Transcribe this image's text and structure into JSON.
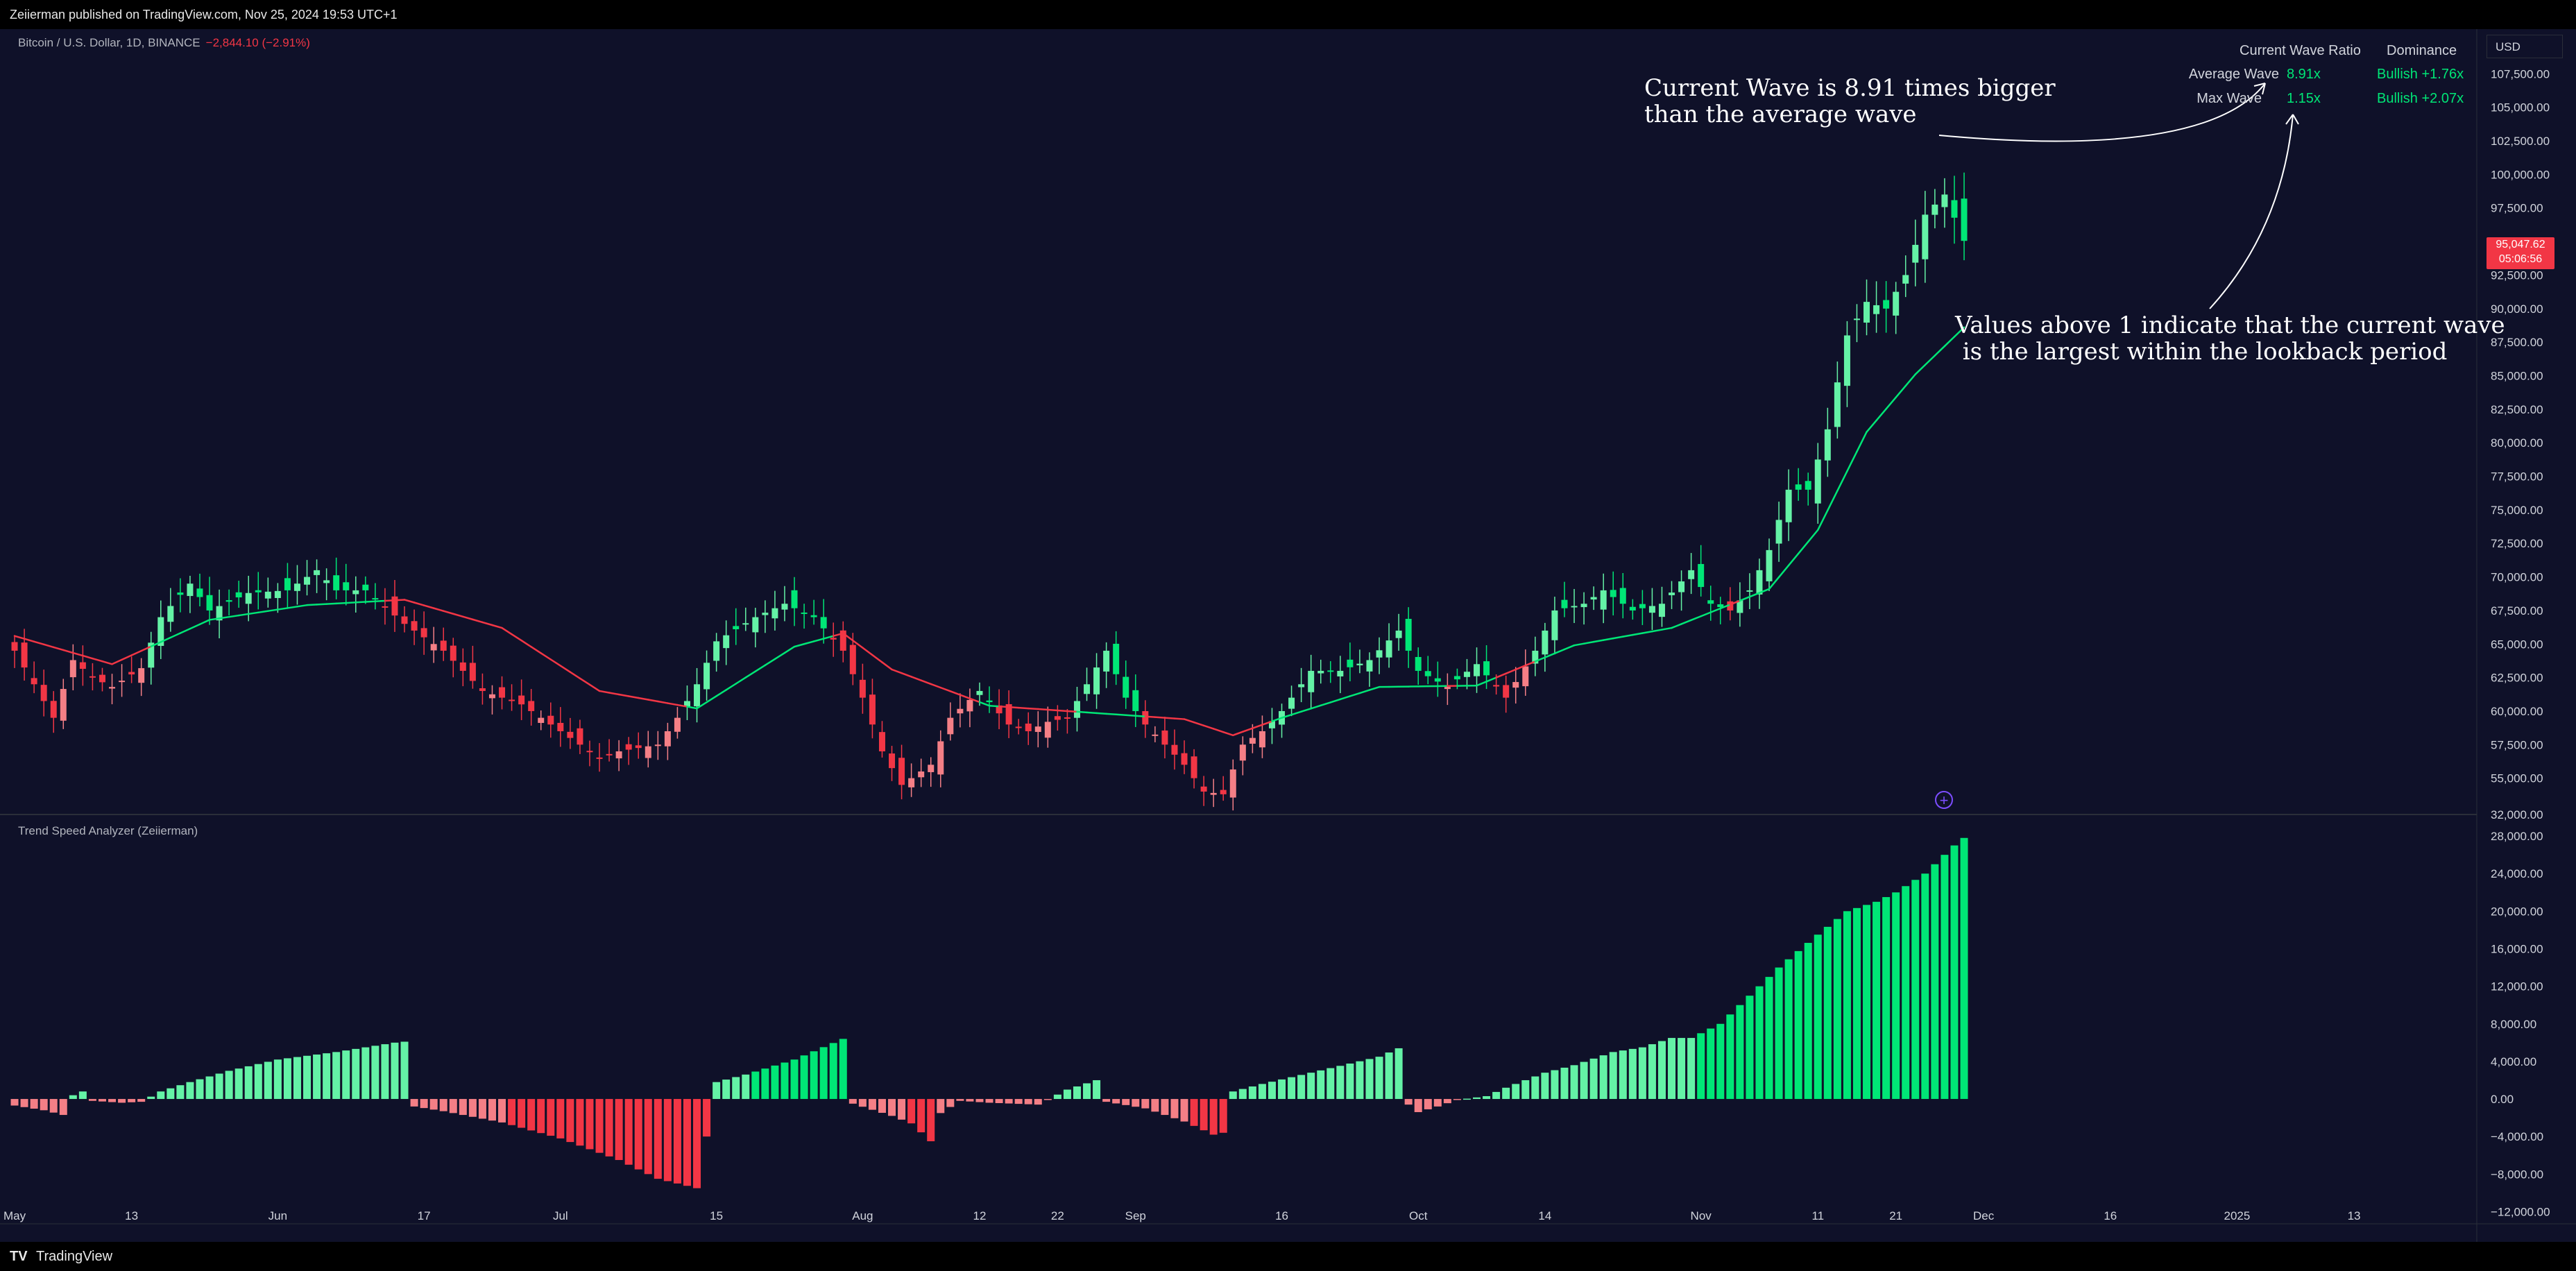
{
  "header": {
    "published": "Zeiierman published on TradingView.com, Nov 25, 2024 19:53 UTC+1"
  },
  "footer": {
    "brand": "TradingView",
    "logo": "TV"
  },
  "symbol": {
    "title": "Bitcoin / U.S. Dollar, 1D, BINANCE",
    "change": "−2,844.10 (−2.91%)"
  },
  "indicator": {
    "title": "Trend Speed Analyzer (Zeiierman)"
  },
  "currency": "USD",
  "last_price": {
    "price": "95,047.62",
    "countdown": "05:06:56",
    "color": "#f23645"
  },
  "annotations": {
    "current_wave": "Current Wave is 8.91 times bigger\nthan the average wave",
    "values_above": "Values above 1 indicate that the current wave\n is the largest within the lookback period"
  },
  "table": {
    "headers": [
      "Current Wave Ratio",
      "Dominance"
    ],
    "rows": [
      {
        "label": "Average Wave",
        "ratio": "8.91x",
        "dominance": "Bullish +1.76x"
      },
      {
        "label": "Max Wave",
        "ratio": "1.15x",
        "dominance": "Bullish +2.07x"
      }
    ]
  },
  "colors": {
    "background": "#0f1129",
    "bull": "#00e676",
    "bear": "#f23645",
    "bull_light": "#64f2a6",
    "bear_light": "#f47f86",
    "text": "#d1d4dc"
  },
  "chart_data": [
    {
      "type": "candlestick",
      "ylim": [
        52500,
        110000
      ],
      "y_ticks": [
        "55,000.00",
        "57,500.00",
        "60,000.00",
        "62,500.00",
        "65,000.00",
        "67,500.00",
        "70,000.00",
        "72,500.00",
        "75,000.00",
        "77,500.00",
        "80,000.00",
        "82,500.00",
        "85,000.00",
        "87,500.00",
        "90,000.00",
        "92,500.00",
        "95,000.00",
        "97,500.00",
        "100,000.00",
        "102,500.00",
        "105,000.00",
        "107,500.00"
      ],
      "y_tick_values": [
        55000,
        57500,
        60000,
        62500,
        65000,
        67500,
        70000,
        72500,
        75000,
        77500,
        80000,
        82500,
        85000,
        87500,
        90000,
        92500,
        95000,
        97500,
        100000,
        102500,
        105000,
        107500
      ],
      "x_ticks": [
        "May",
        "13",
        "Jun",
        "17",
        "Jul",
        "15",
        "Aug",
        "12",
        "22",
        "Sep",
        "16",
        "Oct",
        "14",
        "Nov",
        "11",
        "21",
        "Dec",
        "16",
        "2025",
        "13"
      ],
      "x_tick_bars": [
        0,
        12,
        27,
        42,
        56,
        72,
        87,
        99,
        107,
        115,
        130,
        144,
        157,
        173,
        185,
        193,
        202,
        215,
        228,
        240
      ],
      "keypoints_close": [
        [
          0,
          64500
        ],
        [
          2,
          62000
        ],
        [
          4,
          59500
        ],
        [
          6,
          63800
        ],
        [
          8,
          62500
        ],
        [
          10,
          61800
        ],
        [
          13,
          63200
        ],
        [
          15,
          67000
        ],
        [
          18,
          69500
        ],
        [
          20,
          67500
        ],
        [
          24,
          68800
        ],
        [
          28,
          69000
        ],
        [
          31,
          70500
        ],
        [
          33,
          69000
        ],
        [
          36,
          69000
        ],
        [
          40,
          66500
        ],
        [
          44,
          64500
        ],
        [
          48,
          61500
        ],
        [
          52,
          60500
        ],
        [
          56,
          58500
        ],
        [
          60,
          56500
        ],
        [
          62,
          57000
        ],
        [
          66,
          57500
        ],
        [
          68,
          59500
        ],
        [
          70,
          62000
        ],
        [
          72,
          65200
        ],
        [
          76,
          67000
        ],
        [
          79,
          68000
        ],
        [
          82,
          67000
        ],
        [
          85,
          64500
        ],
        [
          87,
          61000
        ],
        [
          89,
          57000
        ],
        [
          91,
          54500
        ],
        [
          94,
          56000
        ],
        [
          96,
          59500
        ],
        [
          99,
          61500
        ],
        [
          102,
          59000
        ],
        [
          104,
          58500
        ],
        [
          106,
          59200
        ],
        [
          108,
          59500
        ],
        [
          110,
          62000
        ],
        [
          112,
          64500
        ],
        [
          114,
          61000
        ],
        [
          116,
          59000
        ],
        [
          118,
          57500
        ],
        [
          120,
          56000
        ],
        [
          122,
          54000
        ],
        [
          124,
          53800
        ],
        [
          126,
          57500
        ],
        [
          128,
          58500
        ],
        [
          130,
          60000
        ],
        [
          133,
          63000
        ],
        [
          136,
          63000
        ],
        [
          139,
          63800
        ],
        [
          142,
          66000
        ],
        [
          144,
          63000
        ],
        [
          147,
          61800
        ],
        [
          150,
          63500
        ],
        [
          153,
          61000
        ],
        [
          156,
          64500
        ],
        [
          158,
          67500
        ],
        [
          161,
          68000
        ],
        [
          163,
          69000
        ],
        [
          166,
          67500
        ],
        [
          169,
          68000
        ],
        [
          172,
          70500
        ],
        [
          174,
          68000
        ],
        [
          176,
          67500
        ],
        [
          178,
          69000
        ],
        [
          180,
          72000
        ],
        [
          182,
          76500
        ],
        [
          184,
          76500
        ],
        [
          186,
          81000
        ],
        [
          188,
          88000
        ],
        [
          190,
          90500
        ],
        [
          192,
          90000
        ],
        [
          194,
          92500
        ],
        [
          196,
          97000
        ],
        [
          198,
          98500
        ],
        [
          200,
          95047
        ]
      ],
      "trend_line_keypoints": [
        [
          0,
          65600
        ],
        [
          10,
          63500
        ],
        [
          20,
          66800
        ],
        [
          30,
          67900
        ],
        [
          40,
          68300
        ],
        [
          50,
          66200
        ],
        [
          60,
          61500
        ],
        [
          70,
          60200
        ],
        [
          80,
          64800
        ],
        [
          85,
          65800
        ],
        [
          90,
          63100
        ],
        [
          100,
          60400
        ],
        [
          110,
          59900
        ],
        [
          120,
          59400
        ],
        [
          125,
          58200
        ],
        [
          130,
          59500
        ],
        [
          140,
          61800
        ],
        [
          150,
          61900
        ],
        [
          160,
          64900
        ],
        [
          170,
          66200
        ],
        [
          180,
          69100
        ],
        [
          185,
          73500
        ],
        [
          190,
          80800
        ],
        [
          195,
          85100
        ],
        [
          200,
          88600
        ]
      ]
    },
    {
      "type": "bar",
      "title": "Trend Speed Analyzer (Zeiierman)",
      "ylim": [
        -13000,
        30000
      ],
      "y_ticks": [
        "−12,000.00",
        "−8,000.00",
        "−4,000.00",
        "0.00",
        "4,000.00",
        "8,000.00",
        "12,000.00",
        "16,000.00",
        "20,000.00",
        "24,000.00",
        "28,000.00",
        "32,000.00"
      ],
      "y_tick_values": [
        -12000,
        -8000,
        -4000,
        0,
        4000,
        8000,
        12000,
        16000,
        20000,
        24000,
        28000,
        32000
      ],
      "keypoints": [
        [
          0,
          -700
        ],
        [
          3,
          -1200
        ],
        [
          5,
          -1700
        ],
        [
          6,
          400
        ],
        [
          7,
          800
        ],
        [
          8,
          -200
        ],
        [
          11,
          -400
        ],
        [
          13,
          -300
        ],
        [
          15,
          800
        ],
        [
          18,
          1800
        ],
        [
          22,
          3000
        ],
        [
          27,
          4200
        ],
        [
          33,
          5000
        ],
        [
          39,
          6000
        ],
        [
          40,
          6100
        ],
        [
          41,
          -800
        ],
        [
          44,
          -1300
        ],
        [
          50,
          -2500
        ],
        [
          56,
          -4200
        ],
        [
          62,
          -6500
        ],
        [
          66,
          -8500
        ],
        [
          70,
          -9500
        ],
        [
          71,
          -4000
        ],
        [
          72,
          1800
        ],
        [
          75,
          2600
        ],
        [
          80,
          4200
        ],
        [
          85,
          6400
        ],
        [
          86,
          -500
        ],
        [
          90,
          -1800
        ],
        [
          92,
          -2600
        ],
        [
          94,
          -4500
        ],
        [
          95,
          -1500
        ],
        [
          97,
          -200
        ],
        [
          100,
          -400
        ],
        [
          105,
          -600
        ],
        [
          108,
          1000
        ],
        [
          111,
          2000
        ],
        [
          112,
          -300
        ],
        [
          116,
          -1000
        ],
        [
          120,
          -2400
        ],
        [
          123,
          -3800
        ],
        [
          124,
          -3600
        ],
        [
          125,
          800
        ],
        [
          128,
          1600
        ],
        [
          133,
          2800
        ],
        [
          140,
          4500
        ],
        [
          142,
          5400
        ],
        [
          143,
          -600
        ],
        [
          144,
          -1400
        ],
        [
          146,
          -800
        ],
        [
          148,
          -100
        ],
        [
          151,
          300
        ],
        [
          153,
          1200
        ],
        [
          157,
          2800
        ],
        [
          160,
          3600
        ],
        [
          164,
          5000
        ],
        [
          167,
          5500
        ],
        [
          170,
          6500
        ],
        [
          172,
          6500
        ],
        [
          175,
          8000
        ],
        [
          178,
          11000
        ],
        [
          181,
          14000
        ],
        [
          185,
          17500
        ],
        [
          188,
          20000
        ],
        [
          191,
          21000
        ],
        [
          193,
          22000
        ],
        [
          196,
          24000
        ],
        [
          199,
          27000
        ],
        [
          200,
          27800
        ]
      ]
    }
  ]
}
